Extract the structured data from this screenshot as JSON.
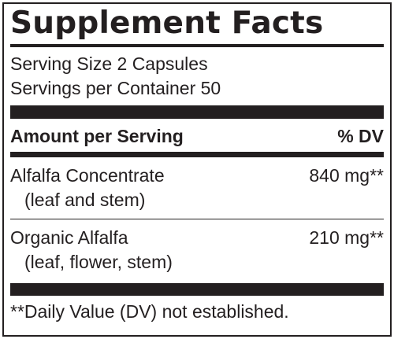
{
  "label": {
    "title": "Supplement Facts",
    "serving_size": "Serving Size 2 Capsules",
    "servings_per_container": "Servings per Container 50",
    "header": {
      "amount": "Amount per Serving",
      "dv": "% DV"
    },
    "ingredients": [
      {
        "name": "Alfalfa Concentrate",
        "detail": "(leaf and stem)",
        "amount": "840 mg**"
      },
      {
        "name": "Organic Alfalfa",
        "detail": "(leaf, flower, stem)",
        "amount": "210 mg**"
      }
    ],
    "footnote": "**Daily Value (DV) not established."
  },
  "colors": {
    "ink": "#231f20",
    "background": "#ffffff"
  }
}
